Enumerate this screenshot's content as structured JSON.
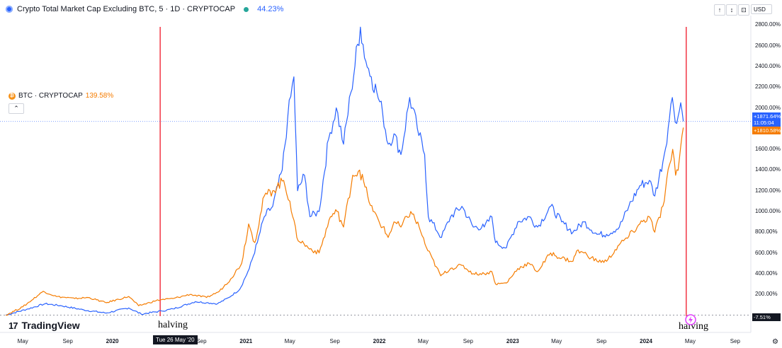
{
  "header": {
    "title": "Crypto Total Market Cap Excluding BTC, 5 · 1D · CRYPTOCAP",
    "value": "44.23%"
  },
  "btc_legend": {
    "label": "BTC · CRYPTOCAP",
    "value": "139.58%"
  },
  "toolbar": {
    "currency": "USD",
    "btn_up": "↑",
    "btn_expand": "↕",
    "btn_reset": "⟳",
    "btn_more": "⊡",
    "collapse": "⌃"
  },
  "price_badges": {
    "blue_value": "+1871.64%",
    "blue_timer": "11:05:04",
    "orange_value": "+1810.58%",
    "zero_value": "-7.51%"
  },
  "annotations": {
    "halving": "halving",
    "date_marker": "Tue 26 May '20"
  },
  "brand": {
    "logo_mark": "17",
    "name": "TradingView"
  },
  "chart_data": {
    "type": "line",
    "y_unit": "%",
    "ylim": [
      -10,
      2850
    ],
    "y_ticks": [
      200,
      400,
      600,
      800,
      1000,
      1200,
      1400,
      1600,
      2000,
      2200,
      2400,
      2600,
      2800
    ],
    "y_tick_labels": [
      "200.00%",
      "400.00%",
      "600.00%",
      "800.00%",
      "1000.00%",
      "1200.00%",
      "1400.00%",
      "1600.00%",
      "2000.00%",
      "2200.00%",
      "2400.00%",
      "2600.00%",
      "2800.00%"
    ],
    "x_range": [
      "2019-03-15",
      "2024-10-10"
    ],
    "x_ticks": [
      {
        "date": "2019-05-01",
        "label": "May",
        "bold": false
      },
      {
        "date": "2019-09-01",
        "label": "Sep",
        "bold": false
      },
      {
        "date": "2020-01-01",
        "label": "2020",
        "bold": true
      },
      {
        "date": "2020-09-01",
        "label": "Sep",
        "bold": false
      },
      {
        "date": "2021-01-01",
        "label": "2021",
        "bold": true
      },
      {
        "date": "2021-05-01",
        "label": "May",
        "bold": false
      },
      {
        "date": "2021-09-01",
        "label": "Sep",
        "bold": false
      },
      {
        "date": "2022-01-01",
        "label": "2022",
        "bold": true
      },
      {
        "date": "2022-05-01",
        "label": "May",
        "bold": false
      },
      {
        "date": "2022-09-01",
        "label": "Sep",
        "bold": false
      },
      {
        "date": "2023-01-01",
        "label": "2023",
        "bold": true
      },
      {
        "date": "2023-05-01",
        "label": "May",
        "bold": false
      },
      {
        "date": "2023-09-01",
        "label": "Sep",
        "bold": false
      },
      {
        "date": "2024-01-01",
        "label": "2024",
        "bold": true
      },
      {
        "date": "2024-05-01",
        "label": "May",
        "bold": false
      },
      {
        "date": "2024-09-01",
        "label": "Sep",
        "bold": false
      }
    ],
    "vertical_markers": [
      {
        "date": "2020-05-11",
        "color": "#f23645"
      },
      {
        "date": "2024-04-20",
        "color": "#f23645"
      }
    ],
    "reference_line": {
      "value": 1870,
      "color": "#2962ff"
    },
    "series": [
      {
        "name": "Crypto Total Market Cap Excluding BTC",
        "color": "#2962ff",
        "points": [
          [
            "2019-03-15",
            0
          ],
          [
            "2019-05-15",
            60
          ],
          [
            "2019-07-01",
            110
          ],
          [
            "2019-08-15",
            90
          ],
          [
            "2019-10-15",
            50
          ],
          [
            "2019-12-15",
            20
          ],
          [
            "2020-02-15",
            70
          ],
          [
            "2020-03-20",
            10
          ],
          [
            "2020-05-15",
            40
          ],
          [
            "2020-06-15",
            60
          ],
          [
            "2020-08-15",
            130
          ],
          [
            "2020-09-15",
            120
          ],
          [
            "2020-10-15",
            110
          ],
          [
            "2020-11-15",
            170
          ],
          [
            "2020-12-15",
            250
          ],
          [
            "2021-01-10",
            450
          ],
          [
            "2021-02-01",
            700
          ],
          [
            "2021-02-20",
            950
          ],
          [
            "2021-03-15",
            1050
          ],
          [
            "2021-04-10",
            1400
          ],
          [
            "2021-04-25",
            1900
          ],
          [
            "2021-05-12",
            2300
          ],
          [
            "2021-05-22",
            1200
          ],
          [
            "2021-06-10",
            1350
          ],
          [
            "2021-06-25",
            950
          ],
          [
            "2021-07-20",
            1000
          ],
          [
            "2021-08-15",
            1700
          ],
          [
            "2021-09-05",
            2000
          ],
          [
            "2021-09-25",
            1650
          ],
          [
            "2021-10-15",
            2150
          ],
          [
            "2021-11-10",
            2780
          ],
          [
            "2021-11-25",
            2450
          ],
          [
            "2021-12-10",
            2300
          ],
          [
            "2021-12-25",
            2150
          ],
          [
            "2022-01-10",
            1950
          ],
          [
            "2022-01-25",
            1650
          ],
          [
            "2022-02-10",
            1750
          ],
          [
            "2022-03-01",
            1550
          ],
          [
            "2022-03-25",
            2100
          ],
          [
            "2022-04-15",
            1800
          ],
          [
            "2022-05-05",
            1550
          ],
          [
            "2022-05-15",
            950
          ],
          [
            "2022-06-20",
            750
          ],
          [
            "2022-07-15",
            950
          ],
          [
            "2022-08-15",
            1050
          ],
          [
            "2022-09-15",
            850
          ],
          [
            "2022-10-15",
            850
          ],
          [
            "2022-11-05",
            950
          ],
          [
            "2022-11-15",
            700
          ],
          [
            "2022-12-15",
            650
          ],
          [
            "2023-01-15",
            900
          ],
          [
            "2023-02-15",
            950
          ],
          [
            "2023-03-10",
            850
          ],
          [
            "2023-04-15",
            1050
          ],
          [
            "2023-05-15",
            900
          ],
          [
            "2023-06-15",
            800
          ],
          [
            "2023-07-15",
            900
          ],
          [
            "2023-08-20",
            780
          ],
          [
            "2023-09-15",
            780
          ],
          [
            "2023-10-20",
            850
          ],
          [
            "2023-11-15",
            1050
          ],
          [
            "2023-12-15",
            1250
          ],
          [
            "2024-01-10",
            1300
          ],
          [
            "2024-01-25",
            1150
          ],
          [
            "2024-02-20",
            1550
          ],
          [
            "2024-03-05",
            1900
          ],
          [
            "2024-03-13",
            2100
          ],
          [
            "2024-03-25",
            1850
          ],
          [
            "2024-04-05",
            2050
          ],
          [
            "2024-04-12",
            1870
          ]
        ]
      },
      {
        "name": "BTC · CRYPTOCAP",
        "color": "#f57c00",
        "points": [
          [
            "2019-03-15",
            0
          ],
          [
            "2019-05-01",
            80
          ],
          [
            "2019-06-26",
            230
          ],
          [
            "2019-08-01",
            180
          ],
          [
            "2019-09-20",
            160
          ],
          [
            "2019-10-27",
            170
          ],
          [
            "2019-12-15",
            120
          ],
          [
            "2020-02-15",
            180
          ],
          [
            "2020-03-13",
            90
          ],
          [
            "2020-04-30",
            140
          ],
          [
            "2020-05-15",
            150
          ],
          [
            "2020-06-15",
            160
          ],
          [
            "2020-08-01",
            200
          ],
          [
            "2020-09-15",
            170
          ],
          [
            "2020-10-20",
            230
          ],
          [
            "2020-11-20",
            350
          ],
          [
            "2020-12-20",
            500
          ],
          [
            "2021-01-08",
            880
          ],
          [
            "2021-01-25",
            700
          ],
          [
            "2021-02-20",
            1150
          ],
          [
            "2021-03-15",
            1200
          ],
          [
            "2021-04-14",
            1300
          ],
          [
            "2021-05-01",
            1100
          ],
          [
            "2021-05-20",
            750
          ],
          [
            "2021-06-20",
            650
          ],
          [
            "2021-07-20",
            600
          ],
          [
            "2021-08-20",
            950
          ],
          [
            "2021-09-07",
            1000
          ],
          [
            "2021-09-25",
            850
          ],
          [
            "2021-10-20",
            1350
          ],
          [
            "2021-11-08",
            1400
          ],
          [
            "2021-11-30",
            1150
          ],
          [
            "2021-12-15",
            1000
          ],
          [
            "2022-01-10",
            850
          ],
          [
            "2022-01-25",
            750
          ],
          [
            "2022-02-10",
            900
          ],
          [
            "2022-03-01",
            850
          ],
          [
            "2022-03-28",
            1000
          ],
          [
            "2022-04-20",
            850
          ],
          [
            "2022-05-10",
            650
          ],
          [
            "2022-06-18",
            380
          ],
          [
            "2022-07-15",
            450
          ],
          [
            "2022-08-15",
            480
          ],
          [
            "2022-09-15",
            400
          ],
          [
            "2022-10-15",
            400
          ],
          [
            "2022-11-05",
            420
          ],
          [
            "2022-11-15",
            300
          ],
          [
            "2022-12-15",
            310
          ],
          [
            "2023-01-15",
            450
          ],
          [
            "2023-02-15",
            500
          ],
          [
            "2023-03-10",
            420
          ],
          [
            "2023-04-15",
            600
          ],
          [
            "2023-05-15",
            550
          ],
          [
            "2023-06-15",
            520
          ],
          [
            "2023-06-25",
            620
          ],
          [
            "2023-07-15",
            600
          ],
          [
            "2023-08-20",
            520
          ],
          [
            "2023-09-15",
            520
          ],
          [
            "2023-10-20",
            680
          ],
          [
            "2023-11-15",
            760
          ],
          [
            "2023-12-15",
            880
          ],
          [
            "2024-01-10",
            950
          ],
          [
            "2024-01-25",
            800
          ],
          [
            "2024-02-20",
            1100
          ],
          [
            "2024-03-05",
            1450
          ],
          [
            "2024-03-14",
            1600
          ],
          [
            "2024-03-22",
            1350
          ],
          [
            "2024-04-01",
            1500
          ],
          [
            "2024-04-12",
            1810
          ]
        ]
      }
    ]
  }
}
